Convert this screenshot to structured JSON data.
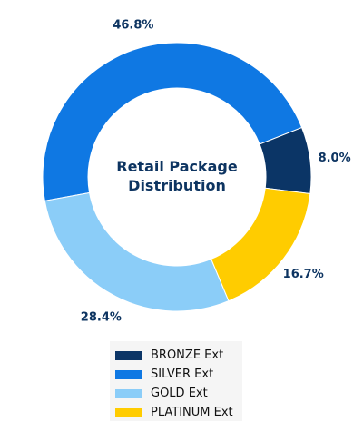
{
  "chart_data": {
    "type": "pie",
    "title": "Retail Package Distribution",
    "title_lines": [
      "Retail Package",
      "Distribution"
    ],
    "donut": true,
    "start_angle_deg": -7.2,
    "direction": "counterclockwise",
    "slices": [
      {
        "name": "BRONZE Ext",
        "value": 8.0,
        "label": "8.0%",
        "color": "#0b3566"
      },
      {
        "name": "SILVER Ext",
        "value": 46.8,
        "label": "46.8%",
        "color": "#0f78e3"
      },
      {
        "name": "GOLD Ext",
        "value": 28.4,
        "label": "28.4%",
        "color": "#8bcdf8"
      },
      {
        "name": "PLATINUM Ext",
        "value": 16.7,
        "label": "16.7%",
        "color": "#ffcc00"
      }
    ],
    "legend_position": "bottom-center",
    "label_color": "#0d3461"
  }
}
